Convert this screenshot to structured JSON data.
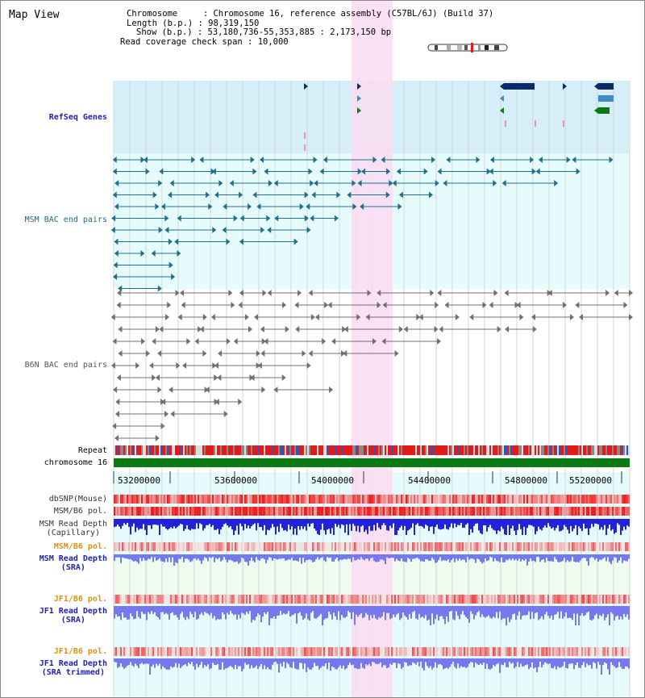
{
  "view_title": "Map View",
  "info": {
    "chromosome_key": "Chromosome",
    "chromosome_val": "Chromosome 16, reference assembly (C57BL/6J) (Build 37)",
    "length_key": "Length (b.p.)",
    "length_val": "98,319,150",
    "show_key": "Show (b.p.)",
    "show_val": "53,180,736-55,353,885 : 2,173,150 bp",
    "span_key": "Read coverage check span",
    "span_val": "10,000"
  },
  "tracks": {
    "refseq": "RefSeq Genes",
    "msm_bac": "MSM BAC end pairs",
    "b6n_bac": "B6N BAC end pairs",
    "repeat": "Repeat",
    "chromosome": "chromosome 16",
    "dbsnp": "dbSNP(Mouse)",
    "msm_pol1": "MSM/B6 pol.",
    "msm_depth_cap_1": "MSM Read Depth",
    "msm_depth_cap_2": "(Capillary)",
    "msm_pol2": "MSM/B6 pol.",
    "msm_depth_sra_1": "MSM Read Depth",
    "msm_depth_sra_2": "(SRA)",
    "jf1_pol1": "JF1/B6 pol.",
    "jf1_depth_1": "JF1 Read Depth",
    "jf1_depth_2": "(SRA)",
    "jf1_pol2": "JF1/B6 pol.",
    "jf1_trim_1": "JF1 Read Depth",
    "jf1_trim_2": "(SRA trimmed)"
  },
  "axis": {
    "ticks": [
      "53200000",
      "53600000",
      "54000000",
      "54400000",
      "54800000",
      "55200000"
    ]
  },
  "colors": {
    "refseq_bg": "#d6eef8",
    "msm_bg": "#e6fbfb",
    "sra_bg": "#eefbee",
    "highlight": "#fadcf2",
    "gene_dark": "#0a2a6a",
    "gene_mid": "#3f8ebf",
    "gene_green": "#0a7a14",
    "msm_pair": "#1f6f8f",
    "b6n_pair": "#707070",
    "chromosome_bar": "#0a7a14",
    "repeat_red": "#e21a1a",
    "depth_blue": "#2222dd",
    "depth_light": "#7777f0",
    "label_blue": "#2222aa",
    "label_teal": "#1e6a88",
    "label_orange": "#e09010"
  }
}
